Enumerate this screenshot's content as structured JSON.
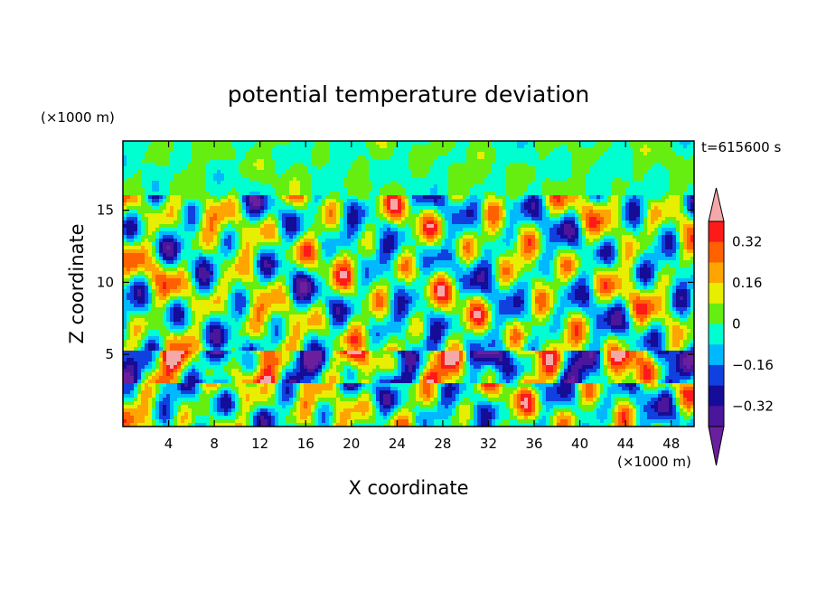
{
  "chart_data": {
    "type": "heatmap",
    "title": "potential temperature deviation",
    "xlabel": "X coordinate",
    "ylabel": "Z coordinate",
    "x_unit": "(×1000 m)",
    "y_unit": "(×1000 m)",
    "time_label": "t=615600 s",
    "xlim": [
      0,
      50
    ],
    "ylim": [
      0,
      19.8
    ],
    "x_ticks": [
      4,
      8,
      12,
      16,
      20,
      24,
      28,
      32,
      36,
      40,
      44,
      48
    ],
    "y_ticks": [
      5,
      10,
      15
    ],
    "colorbar": {
      "levels": [
        -0.4,
        -0.32,
        -0.24,
        -0.16,
        -0.08,
        0,
        0.08,
        0.16,
        0.24,
        0.32,
        0.4
      ],
      "tick_labels": [
        "0.32",
        "0.16",
        "0",
        "−0.16",
        "−0.32"
      ],
      "tick_values": [
        0.32,
        0.16,
        0,
        -0.16,
        -0.32
      ],
      "colors": [
        "#6a1f9e",
        "#4b169c",
        "#150c98",
        "#1040e0",
        "#00b8ff",
        "#00ffd0",
        "#66ee11",
        "#e8ee00",
        "#ffa400",
        "#ff6000",
        "#ff1a1a",
        "#f5a8a8"
      ],
      "extend": "both"
    }
  }
}
